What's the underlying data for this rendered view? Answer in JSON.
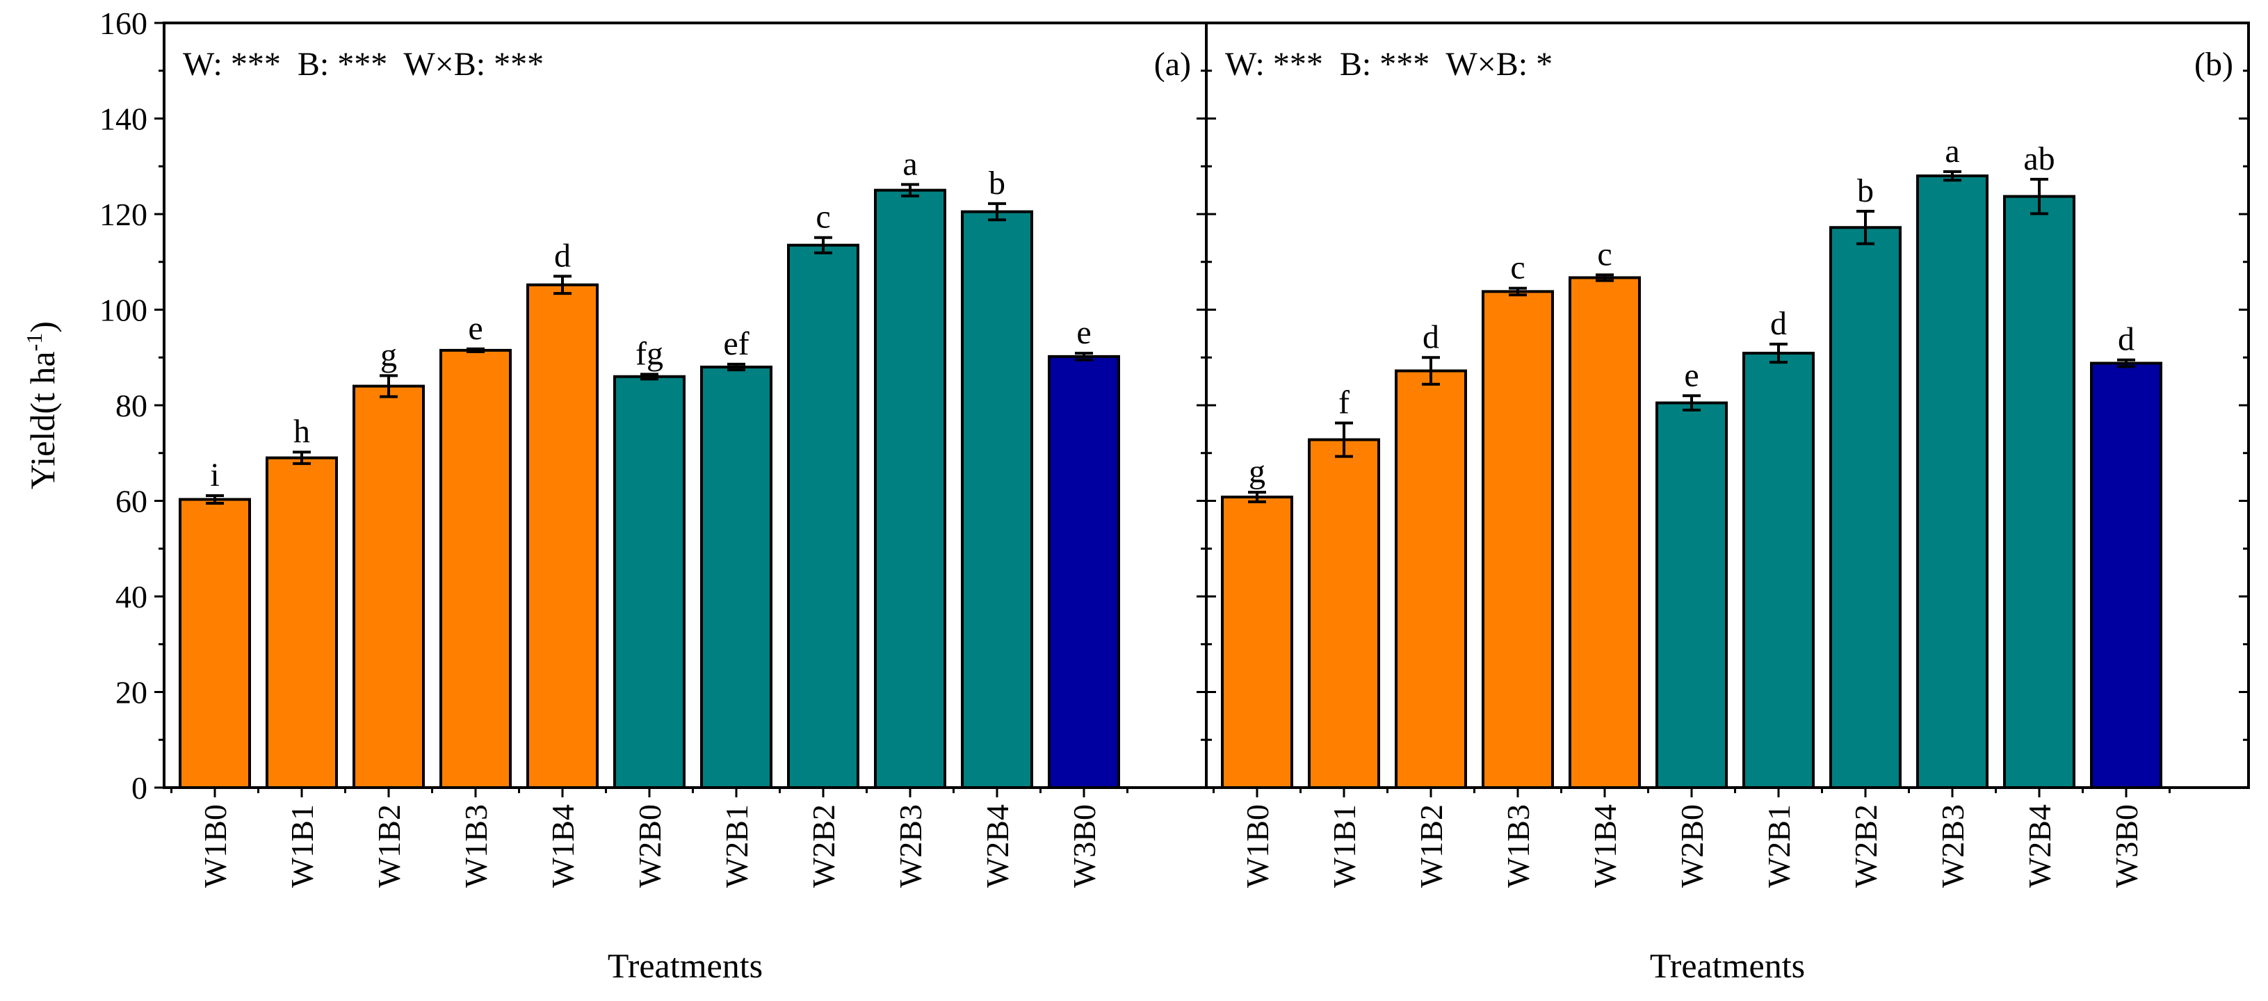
{
  "chart_data": {
    "type": "bar",
    "ylabel": "Yield(t ha",
    "ylabel_sup": "-1",
    "ylabel_close": ")",
    "xlabel": "Treatments",
    "ylim": [
      0,
      160
    ],
    "yticks": [
      0,
      20,
      40,
      60,
      80,
      100,
      120,
      140,
      160
    ],
    "categories": [
      "W1B0",
      "W1B1",
      "W1B2",
      "W1B3",
      "W1B4",
      "W2B0",
      "W2B1",
      "W2B2",
      "W2B3",
      "W2B4",
      "W3B0"
    ],
    "group_colors": {
      "W1": "#FF8000",
      "W2": "#008080",
      "W3": "#0000A0"
    },
    "groups": [
      "W1",
      "W1",
      "W1",
      "W1",
      "W1",
      "W2",
      "W2",
      "W2",
      "W2",
      "W2",
      "W3"
    ],
    "panels": [
      {
        "label": "(a)",
        "stats": "W: ***  B: ***  W×B: ***",
        "values": [
          60.3,
          69.0,
          84.0,
          91.5,
          105.2,
          86.0,
          88.0,
          113.5,
          125.0,
          120.5,
          90.2
        ],
        "errors": [
          0.8,
          1.2,
          2.2,
          0.3,
          1.8,
          0.5,
          0.6,
          1.6,
          1.2,
          1.7,
          0.7
        ],
        "letters": [
          "i",
          "h",
          "g",
          "e",
          "d",
          "fg",
          "ef",
          "c",
          "a",
          "b",
          "e"
        ]
      },
      {
        "label": "(b)",
        "stats": "W: ***  B: ***  W×B: *",
        "values": [
          60.8,
          72.8,
          87.2,
          103.8,
          106.7,
          80.5,
          90.9,
          117.2,
          128.0,
          123.7,
          88.8
        ],
        "errors": [
          1.0,
          3.5,
          2.8,
          0.7,
          0.6,
          1.5,
          1.9,
          3.4,
          0.9,
          3.6,
          0.7
        ],
        "letters": [
          "g",
          "f",
          "d",
          "c",
          "c",
          "e",
          "d",
          "b",
          "a",
          "ab",
          "d"
        ]
      }
    ]
  }
}
